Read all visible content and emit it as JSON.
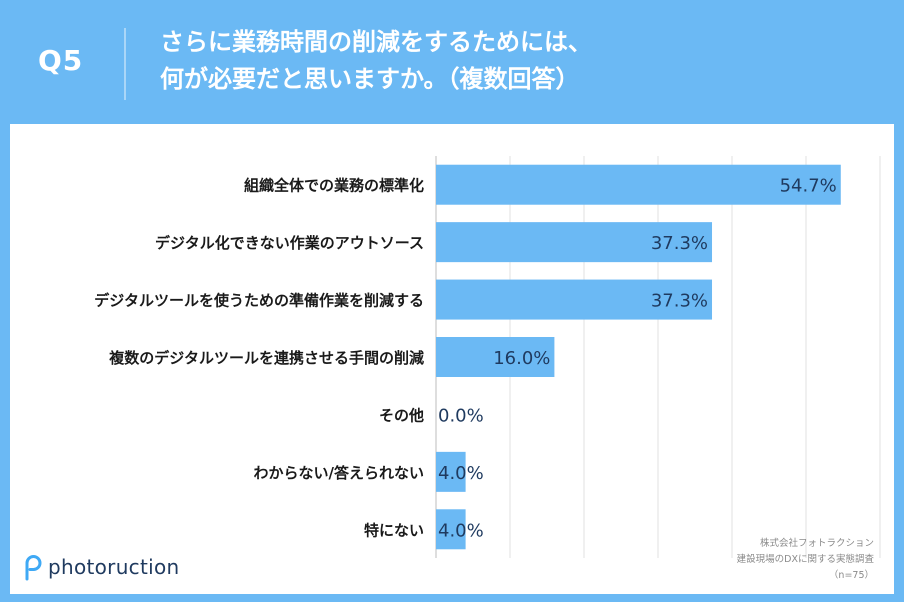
{
  "header": {
    "question_number": "Q5",
    "question_line1": "さらに業務時間の削減をするためには、",
    "question_line2": "何が必要だと思いますか。（複数回答）"
  },
  "chart_data": {
    "type": "bar",
    "orientation": "horizontal",
    "categories": [
      "組織全体での業務の標準化",
      "デジタル化できない作業のアウトソース",
      "デジタルツールを使うための準備作業を削減する",
      "複数のデジタルツールを連携させる手間の削減",
      "その他",
      "わからない/答えられない",
      "特にない"
    ],
    "values": [
      54.7,
      37.3,
      37.3,
      16.0,
      0.0,
      4.0,
      4.0
    ],
    "value_labels": [
      "54.7%",
      "37.3%",
      "37.3%",
      "16.0%",
      "0.0%",
      "4.0%",
      "4.0%"
    ],
    "xlim": [
      0,
      60
    ],
    "grid": true,
    "bar_color": "#6bb9f4",
    "label_color": "#1f3a5f"
  },
  "footer": {
    "credit_line1": "株式会社フォトラクション",
    "credit_line2": "建設現場のDXに関する実態調査",
    "credit_line3": "（n=75）"
  },
  "logo": {
    "text": "photoruction",
    "icon": "photoruction-p-icon",
    "icon_color": "#3fa9f5"
  },
  "colors": {
    "background": "#6bb9f4",
    "panel": "#ffffff",
    "text_dark": "#1a1a1a"
  }
}
